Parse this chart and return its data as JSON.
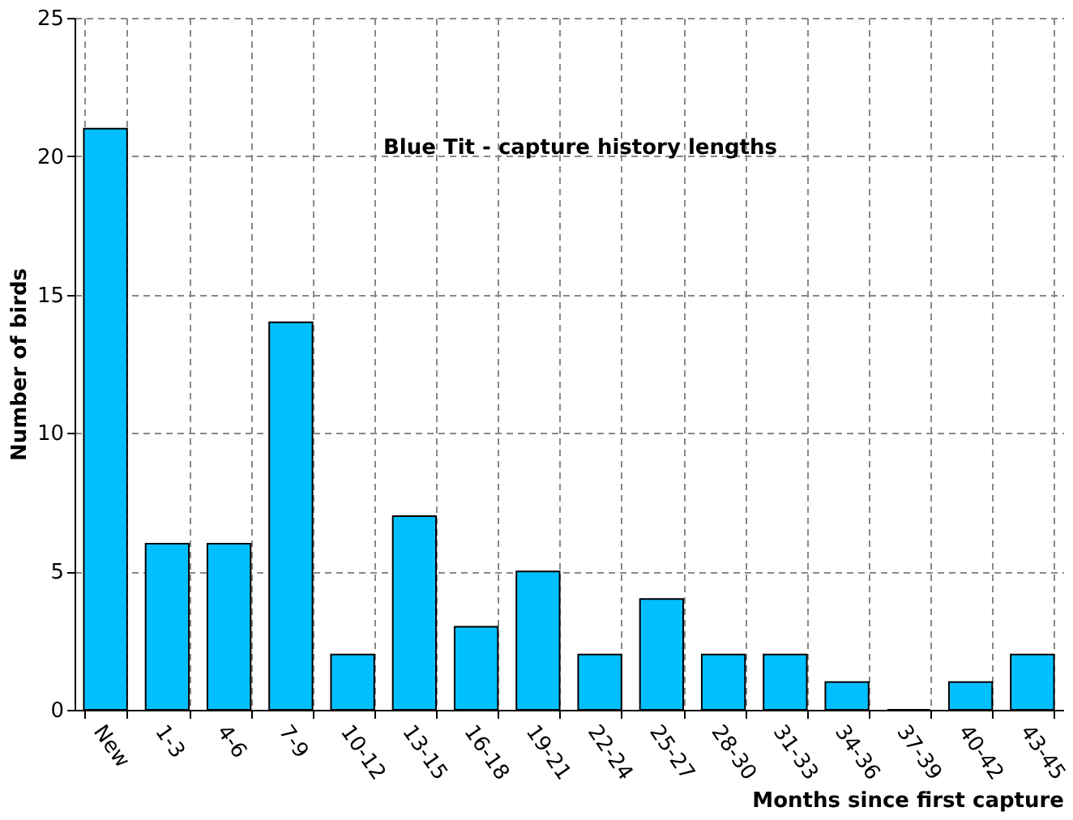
{
  "chart_data": {
    "type": "bar",
    "title": "Blue Tit - capture history lengths",
    "xlabel": "Months since first capture",
    "ylabel": "Number of birds",
    "categories": [
      "New",
      "1-3",
      "4-6",
      "7-9",
      "10-12",
      "13-15",
      "16-18",
      "19-21",
      "22-24",
      "25-27",
      "28-30",
      "31-33",
      "34-36",
      "37-39",
      "40-42",
      "43-45"
    ],
    "values": [
      21,
      6,
      6,
      14,
      2,
      7,
      3,
      5,
      2,
      4,
      2,
      2,
      1,
      0,
      1,
      2
    ],
    "color": "#00bfff",
    "ylim": [
      0,
      25
    ],
    "yticks": [
      0,
      5,
      10,
      15,
      20,
      25
    ],
    "grid": true
  }
}
